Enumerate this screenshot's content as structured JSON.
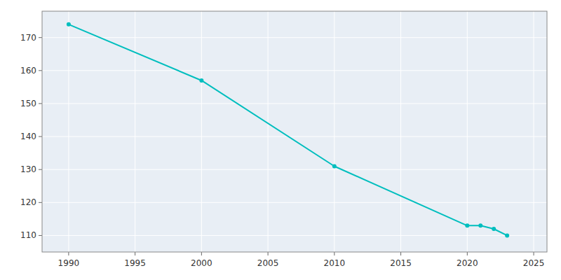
{
  "chart_data": {
    "type": "line",
    "x": [
      1990,
      2000,
      2010,
      2020,
      2021,
      2022,
      2023
    ],
    "values": [
      174,
      157,
      131,
      113,
      113,
      112,
      110
    ],
    "color": "#00BEBE",
    "marker": "circle",
    "xlim": [
      1988,
      2026
    ],
    "ylim": [
      105,
      178
    ],
    "xticks": [
      1990,
      1995,
      2000,
      2005,
      2010,
      2015,
      2020,
      2025
    ],
    "yticks": [
      110,
      120,
      130,
      140,
      150,
      160,
      170
    ],
    "grid": true
  }
}
